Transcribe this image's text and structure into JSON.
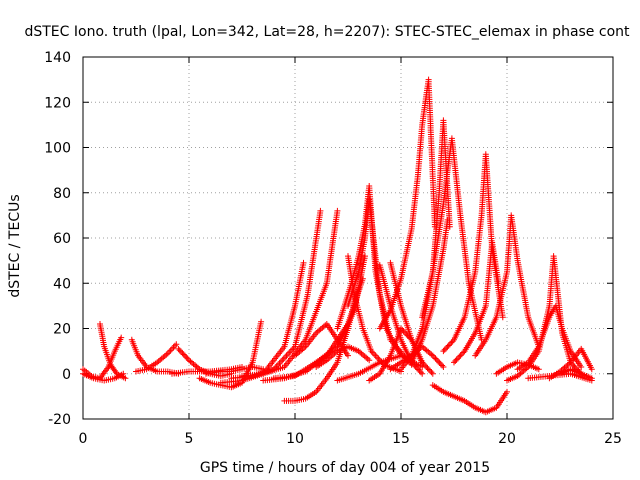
{
  "chart_data": {
    "type": "scatter",
    "title": "dSTEC Iono. truth (lpal, Lon=342, Lat=28, h=2207): STEC-STEC_elemax in phase cont",
    "xlabel": "GPS time / hours of day 004 of year 2015",
    "ylabel": "dSTEC  / TECUs",
    "xlim": [
      0,
      25
    ],
    "ylim": [
      -20,
      140
    ],
    "xticks": [
      "0",
      "5",
      "10",
      "15",
      "20",
      "25"
    ],
    "yticks": [
      "-20",
      "0",
      "20",
      "40",
      "60",
      "80",
      "100",
      "120",
      "140"
    ],
    "grid": true,
    "marker": "+",
    "color": "#ff0000",
    "arcs": [
      {
        "x": [
          0.0,
          0.5,
          1.0,
          1.5,
          1.9
        ],
        "y": [
          0,
          -2,
          -3,
          -2,
          0
        ]
      },
      {
        "x": [
          0.0,
          0.4,
          0.8,
          1.2,
          1.5,
          1.8
        ],
        "y": [
          2,
          -1,
          -2,
          3,
          10,
          16
        ]
      },
      {
        "x": [
          0.8,
          1.0,
          1.3,
          1.6,
          2.0
        ],
        "y": [
          22,
          12,
          4,
          0,
          -2
        ]
      },
      {
        "x": [
          2.3,
          2.6,
          3.0,
          3.5,
          4.0,
          4.5
        ],
        "y": [
          15,
          8,
          3,
          1,
          1,
          0
        ]
      },
      {
        "x": [
          2.5,
          3.0,
          3.5,
          4.0,
          4.4
        ],
        "y": [
          1,
          2,
          5,
          9,
          13
        ]
      },
      {
        "x": [
          4.5,
          5.0,
          5.5,
          6.0,
          6.5,
          7.0
        ],
        "y": [
          11,
          6,
          2,
          0,
          -1,
          0
        ]
      },
      {
        "x": [
          4.2,
          5.0,
          6.0,
          7.0,
          7.5
        ],
        "y": [
          0,
          1,
          1,
          2,
          3
        ]
      },
      {
        "x": [
          5.5,
          6.0,
          6.5,
          7.0,
          7.5,
          8.0,
          8.4
        ],
        "y": [
          -2,
          -4,
          -5,
          -6,
          -4,
          5,
          23
        ]
      },
      {
        "x": [
          5.8,
          6.5,
          7.0,
          7.5,
          8.0,
          8.5
        ],
        "y": [
          0,
          1,
          1,
          2,
          3,
          2
        ]
      },
      {
        "x": [
          6.5,
          7.5,
          8.5,
          9.5,
          10.0,
          10.4
        ],
        "y": [
          -4,
          -3,
          0,
          12,
          30,
          49
        ]
      },
      {
        "x": [
          7.0,
          8.0,
          9.0,
          10.0,
          10.6,
          11.2
        ],
        "y": [
          -2,
          -1,
          2,
          12,
          35,
          72
        ]
      },
      {
        "x": [
          7.5,
          8.5,
          9.5,
          10.5,
          11.5,
          12.0
        ],
        "y": [
          -1,
          0,
          3,
          15,
          40,
          72
        ]
      },
      {
        "x": [
          8.5,
          9.5,
          10.5,
          11.5,
          12.5,
          13.2
        ],
        "y": [
          -3,
          -2,
          1,
          8,
          22,
          42
        ]
      },
      {
        "x": [
          9.0,
          10.0,
          11.0,
          12.0,
          12.8,
          13.3
        ],
        "y": [
          -2,
          -1,
          5,
          12,
          28,
          52
        ]
      },
      {
        "x": [
          9.5,
          10.0,
          10.5,
          11.0,
          11.5,
          12.0,
          12.5,
          13.0
        ],
        "y": [
          -12,
          -12,
          -11,
          -8,
          -2,
          5,
          20,
          38
        ]
      },
      {
        "x": [
          10.0,
          10.5,
          11.0,
          11.5,
          12.0,
          12.5
        ],
        "y": [
          8,
          12,
          18,
          22,
          15,
          8
        ]
      },
      {
        "x": [
          11.0,
          11.5,
          12.0,
          12.5,
          13.0,
          13.5
        ],
        "y": [
          3,
          6,
          10,
          12,
          10,
          6
        ]
      },
      {
        "x": [
          12.5,
          13.0,
          13.3,
          13.5,
          13.7,
          14.0,
          14.5,
          15.5
        ],
        "y": [
          30,
          45,
          60,
          77,
          60,
          35,
          15,
          4
        ]
      },
      {
        "x": [
          12.0,
          12.6,
          13.0,
          13.3,
          13.5,
          13.8,
          14.3,
          15.0
        ],
        "y": [
          20,
          38,
          52,
          66,
          83,
          45,
          20,
          8
        ]
      },
      {
        "x": [
          12.5,
          12.8,
          13.2,
          13.6,
          14.2,
          15.0
        ],
        "y": [
          52,
          35,
          20,
          10,
          4,
          1
        ]
      },
      {
        "x": [
          12.0,
          13.0,
          14.0,
          15.0,
          16.0
        ],
        "y": [
          -3,
          0,
          5,
          8,
          3
        ]
      },
      {
        "x": [
          13.5,
          14.0,
          14.5,
          15.0,
          15.5,
          16.0
        ],
        "y": [
          -3,
          0,
          8,
          20,
          15,
          5
        ]
      },
      {
        "x": [
          14.0,
          14.5,
          15.0,
          15.5,
          16.0
        ],
        "y": [
          48,
          30,
          15,
          5,
          0
        ]
      },
      {
        "x": [
          14.5,
          15.0,
          15.5,
          16.0,
          16.5
        ],
        "y": [
          49,
          30,
          15,
          5,
          0
        ]
      },
      {
        "x": [
          14.0,
          14.5,
          15.0,
          15.5,
          15.8,
          16.0,
          16.3,
          16.6
        ],
        "y": [
          20,
          28,
          42,
          64,
          88,
          110,
          130,
          65
        ]
      },
      {
        "x": [
          14.5,
          15.0,
          15.5,
          16.0,
          16.5,
          17.0
        ],
        "y": [
          2,
          5,
          8,
          12,
          8,
          3
        ]
      },
      {
        "x": [
          15.0,
          15.5,
          16.0,
          16.5,
          16.8,
          17.0,
          17.3
        ],
        "y": [
          2,
          8,
          20,
          45,
          80,
          112,
          65
        ]
      },
      {
        "x": [
          15.5,
          16.0,
          16.5,
          17.0,
          17.2
        ],
        "y": [
          5,
          15,
          30,
          55,
          68
        ]
      },
      {
        "x": [
          16.0,
          16.5,
          17.0,
          17.2,
          17.4,
          17.8,
          18.2,
          18.8
        ],
        "y": [
          25,
          45,
          75,
          90,
          104,
          70,
          40,
          15
        ]
      },
      {
        "x": [
          16.5,
          17.0,
          17.5,
          18.0,
          18.5,
          19.0,
          19.5,
          20.0
        ],
        "y": [
          -5,
          -8,
          -10,
          -12,
          -15,
          -17,
          -15,
          -8
        ]
      },
      {
        "x": [
          17.0,
          17.5,
          18.0,
          18.5,
          18.8,
          19.0,
          19.3,
          19.8
        ],
        "y": [
          10,
          15,
          25,
          45,
          70,
          97,
          55,
          25
        ]
      },
      {
        "x": [
          17.5,
          18.0,
          18.5,
          19.0,
          19.3,
          19.6
        ],
        "y": [
          5,
          10,
          18,
          30,
          58,
          40
        ]
      },
      {
        "x": [
          18.5,
          19.0,
          19.5,
          20.0,
          20.2,
          20.5,
          21.0,
          21.5
        ],
        "y": [
          8,
          15,
          25,
          45,
          70,
          50,
          25,
          12
        ]
      },
      {
        "x": [
          19.5,
          20.0,
          20.5,
          21.0,
          21.5
        ],
        "y": [
          0,
          3,
          5,
          4,
          2
        ]
      },
      {
        "x": [
          20.0,
          20.5,
          21.0,
          21.5,
          22.0,
          22.2,
          22.6,
          23.0,
          23.5
        ],
        "y": [
          -3,
          -1,
          3,
          10,
          30,
          52,
          18,
          5,
          0
        ]
      },
      {
        "x": [
          20.5,
          21.0,
          21.5,
          22.0,
          22.3,
          22.6,
          23.0,
          23.5
        ],
        "y": [
          2,
          5,
          12,
          25,
          30,
          20,
          10,
          3
        ]
      },
      {
        "x": [
          22.0,
          22.5,
          23.0,
          23.5,
          24.0
        ],
        "y": [
          -2,
          1,
          5,
          11,
          2
        ]
      },
      {
        "x": [
          21.0,
          22.0,
          23.0,
          24.0
        ],
        "y": [
          -2,
          -1,
          0,
          -3
        ]
      },
      {
        "x": [
          22.5,
          23.0,
          23.5,
          24.0
        ],
        "y": [
          0,
          2,
          0,
          -2
        ]
      }
    ]
  }
}
